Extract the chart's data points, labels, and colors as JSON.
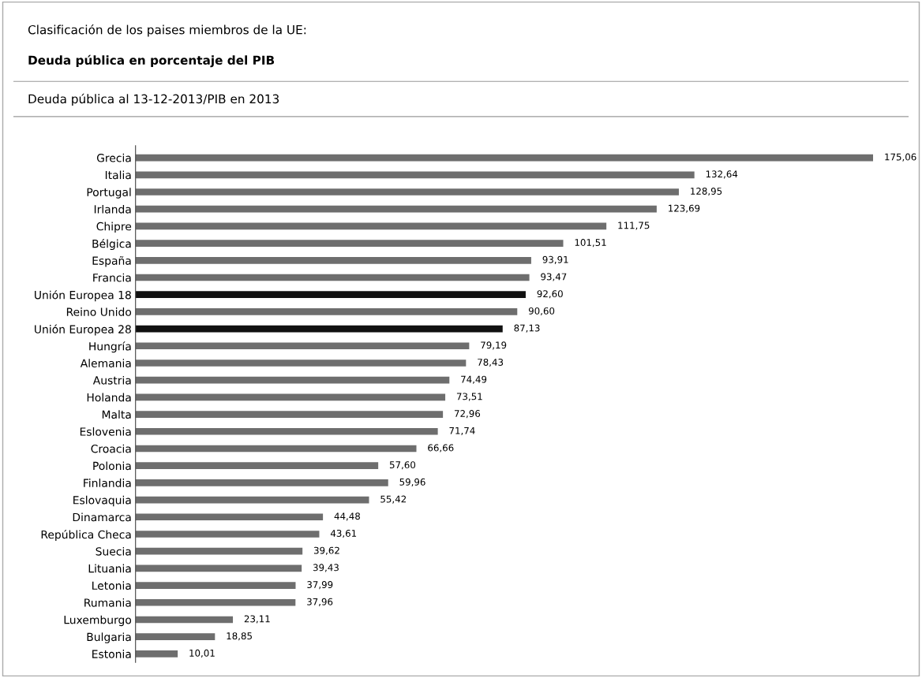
{
  "chart_data": {
    "type": "bar",
    "orientation": "horizontal",
    "title": "Clasificación de los paises miembros de la UE:",
    "subtitle": "Deuda pública en porcentaje del PIB",
    "annotations": [
      "Deuda pública al 13-12-2013/PIB en 2013"
    ],
    "categories": [
      "Grecia",
      "Italia",
      "Portugal",
      "Irlanda",
      "Chipre",
      "Bélgica",
      "España",
      "Francia",
      "Unión Europea 18",
      "Reino Unido",
      "Unión Europea 28",
      "Hungría",
      "Alemania",
      "Austria",
      "Holanda",
      "Malta",
      "Eslovenia",
      "Croacia",
      "Polonia",
      "Finlandia",
      "Eslovaquia",
      "Dinamarca",
      "República Checa",
      "Suecia",
      "Lituania",
      "Letonia",
      "Rumania",
      "Luxemburgo",
      "Bulgaria",
      "Estonia"
    ],
    "values": [
      175.06,
      132.64,
      128.95,
      123.69,
      111.75,
      101.51,
      93.91,
      93.47,
      92.6,
      90.6,
      87.13,
      79.19,
      78.43,
      74.49,
      73.51,
      72.96,
      71.74,
      66.66,
      57.6,
      59.96,
      55.42,
      44.48,
      43.61,
      39.62,
      39.43,
      37.99,
      37.96,
      23.11,
      18.85,
      10.01
    ],
    "value_labels": [
      "175,06",
      "132,64",
      "128,95",
      "123,69",
      "111,75",
      "101,51",
      "93,91",
      "93,47",
      "92,60",
      "90,60",
      "87,13",
      "79,19",
      "78,43",
      "74,49",
      "73,51",
      "72,96",
      "71,74",
      "66,66",
      "57,60",
      "59,96",
      "55,42",
      "44,48",
      "43,61",
      "39,62",
      "39,43",
      "37,99",
      "37,96",
      "23,11",
      "18,85",
      "10,01"
    ],
    "colors": [
      "#6e6e6e",
      "#6e6e6e",
      "#6e6e6e",
      "#6e6e6e",
      "#6e6e6e",
      "#6e6e6e",
      "#6e6e6e",
      "#6e6e6e",
      "#111111",
      "#6e6e6e",
      "#111111",
      "#6e6e6e",
      "#6e6e6e",
      "#6e6e6e",
      "#6e6e6e",
      "#6e6e6e",
      "#6e6e6e",
      "#6e6e6e",
      "#6e6e6e",
      "#6e6e6e",
      "#6e6e6e",
      "#6e6e6e",
      "#6e6e6e",
      "#6e6e6e",
      "#6e6e6e",
      "#6e6e6e",
      "#6e6e6e",
      "#6e6e6e",
      "#6e6e6e",
      "#6e6e6e"
    ],
    "grid": false,
    "legend": false
  }
}
